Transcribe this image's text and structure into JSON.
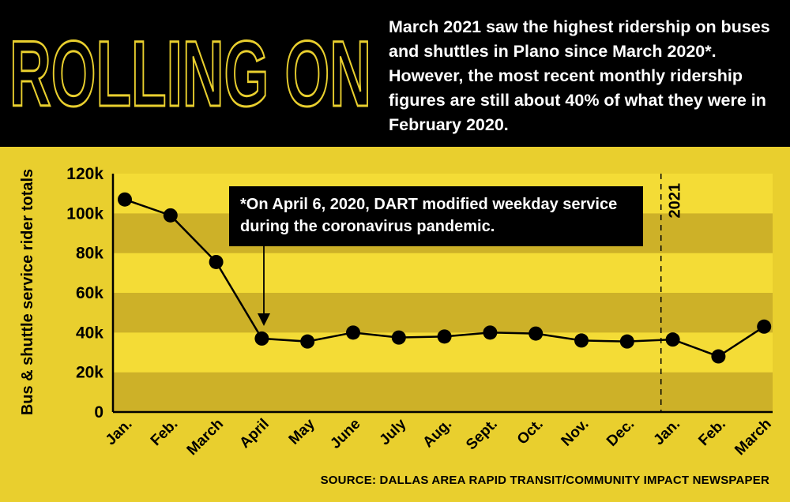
{
  "header": {
    "headline": "ROLLING ON",
    "subtitle": "March 2021 saw the highest ridership on buses and shuttles in Plano since March 2020*. However, the most recent monthly ridership figures are still about 40% of what they were in February 2020."
  },
  "annotation": "*On April 6, 2020, DART modified weekday service during the coronavirus pandemic.",
  "year_marker": "2021",
  "source": "SOURCE: DALLAS AREA RAPID TRANSIT/COMMUNITY IMPACT NEWSPAPER",
  "colors": {
    "background": "#E9CF2E",
    "band_dark": "#CDB128",
    "band_light": "#F4DC36",
    "header": "#000000",
    "headline": "#E9CF2E",
    "line": "#000000"
  },
  "chart_data": {
    "type": "line",
    "categories": [
      "Jan.",
      "Feb.",
      "March",
      "April",
      "May",
      "June",
      "July",
      "Aug.",
      "Sept.",
      "Oct.",
      "Nov.",
      "Dec.",
      "Jan.",
      "Feb.",
      "March"
    ],
    "values": [
      107000,
      99000,
      75500,
      37000,
      35500,
      40000,
      37500,
      38000,
      40000,
      39500,
      36000,
      35500,
      36500,
      28000,
      43000
    ],
    "ylabel": "Bus & shuttle service rider totals",
    "ylim": [
      0,
      120000
    ],
    "yticks": [
      0,
      20000,
      40000,
      60000,
      80000,
      100000,
      120000
    ],
    "ytick_labels": [
      "0",
      "20k",
      "40k",
      "60k",
      "80k",
      "100k",
      "120k"
    ],
    "grid": "alternating horizontal bands",
    "legend": "none"
  }
}
